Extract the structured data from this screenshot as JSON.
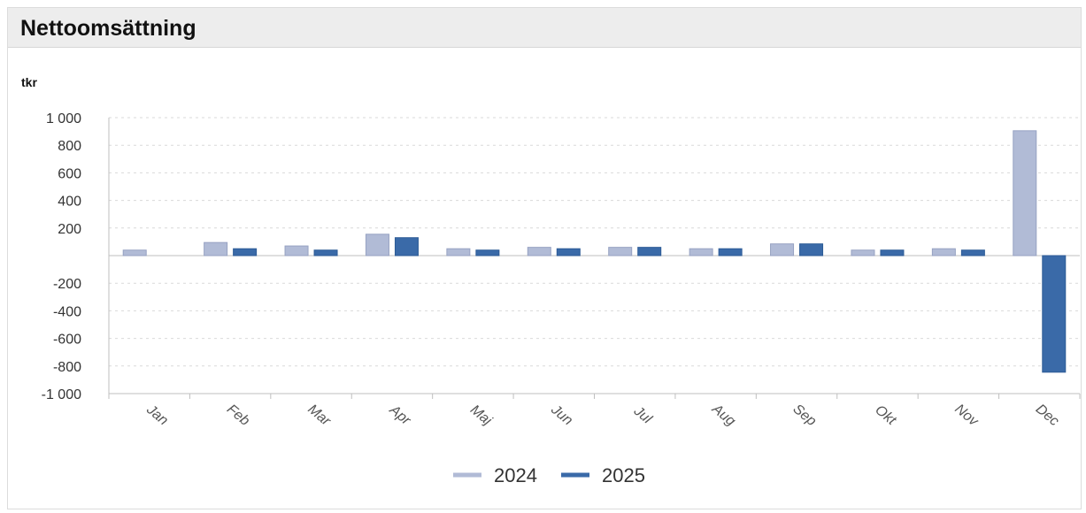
{
  "header": {
    "title": "Nettoomsättning"
  },
  "chart_data": {
    "type": "bar",
    "title": "Nettoomsättning",
    "unit": "tkr",
    "xlabel": "",
    "ylabel": "tkr",
    "categories": [
      "Jan",
      "Feb",
      "Mar",
      "Apr",
      "Maj",
      "Jun",
      "Jul",
      "Aug",
      "Sep",
      "Okt",
      "Nov",
      "Dec"
    ],
    "series": [
      {
        "name": "2024",
        "color": "#b1bbd6",
        "values": [
          40,
          95,
          70,
          155,
          50,
          60,
          60,
          50,
          85,
          40,
          50,
          905
        ]
      },
      {
        "name": "2025",
        "color": "#3a6aa8",
        "values": [
          null,
          50,
          40,
          130,
          40,
          50,
          60,
          50,
          85,
          40,
          40,
          -845
        ]
      }
    ],
    "ylim": [
      -1000,
      1000
    ],
    "yticks": [
      1000,
      800,
      600,
      400,
      200,
      -200,
      -400,
      -600,
      -800,
      -1000
    ],
    "ytick_labels": [
      "1 000",
      "800",
      "600",
      "400",
      "200",
      "-200",
      "-400",
      "-600",
      "-800",
      "-1 000"
    ],
    "grid": true,
    "legend_position": "bottom"
  }
}
